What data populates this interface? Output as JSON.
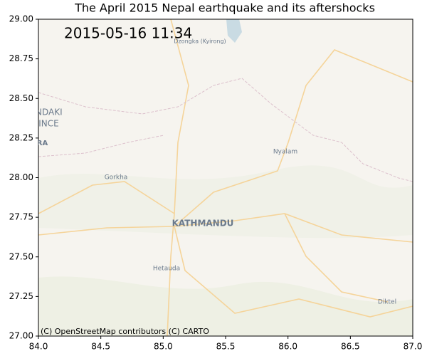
{
  "chart_data": {
    "type": "map",
    "title": "The April 2015 Nepal earthquake and its aftershocks",
    "annotation": "2015-05-16 11:34",
    "attribution": "(C) OpenStreetMap contributors (C) CARTO",
    "map_labels": [
      "Dzongka (Kyirong)",
      "Nyalam",
      "Gorkha",
      "KATHMANDU",
      "Hetauda",
      "Diktel",
      "NDAKI",
      "VINCE",
      "ARA"
    ],
    "xlim": [
      84,
      87
    ],
    "ylim": [
      27,
      29
    ],
    "xticks": [
      {
        "value": 84,
        "label": "84.0"
      },
      {
        "value": 84.5,
        "label": "84.5"
      },
      {
        "value": 85,
        "label": "85.0"
      },
      {
        "value": 85.5,
        "label": "85.5"
      },
      {
        "value": 86,
        "label": "86.0"
      },
      {
        "value": 86.5,
        "label": "86.5"
      },
      {
        "value": 87,
        "label": "87.0"
      }
    ],
    "yticks": [
      {
        "value": 27,
        "label": "27.00"
      },
      {
        "value": 27.25,
        "label": "27.25"
      },
      {
        "value": 27.5,
        "label": "27.50"
      },
      {
        "value": 27.75,
        "label": "27.75"
      },
      {
        "value": 28,
        "label": "28.00"
      },
      {
        "value": 28.25,
        "label": "28.25"
      },
      {
        "value": 28.5,
        "label": "28.50"
      },
      {
        "value": 28.75,
        "label": "28.75"
      },
      {
        "value": 29,
        "label": "29.00"
      }
    ]
  }
}
